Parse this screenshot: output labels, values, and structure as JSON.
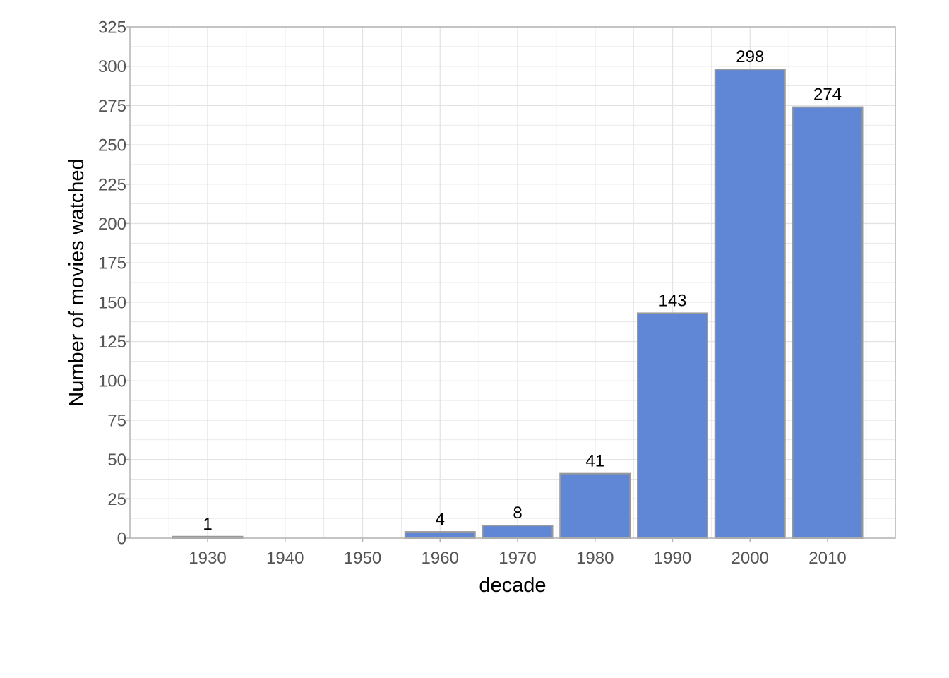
{
  "chart_data": {
    "type": "bar",
    "categories": [
      "1930",
      "1940",
      "1950",
      "1960",
      "1970",
      "1980",
      "1990",
      "2000",
      "2010"
    ],
    "values": [
      1,
      0,
      0,
      4,
      8,
      41,
      143,
      298,
      274
    ],
    "data_labels": [
      "1",
      "",
      "",
      "4",
      "8",
      "41",
      "143",
      "298",
      "274"
    ],
    "title": "",
    "xlabel": "decade",
    "ylabel": "Number of movies watched",
    "ylim": [
      0,
      325
    ],
    "yticks": [
      0,
      25,
      50,
      75,
      100,
      125,
      150,
      175,
      200,
      225,
      250,
      275,
      300,
      325
    ],
    "grid": true,
    "colors": {
      "bar_fill": "#5f87d6",
      "bar_outline": "#999999",
      "grid": "#e3e3e3",
      "panel_border": "#b3b3b3",
      "tick_text": "#555555"
    }
  }
}
